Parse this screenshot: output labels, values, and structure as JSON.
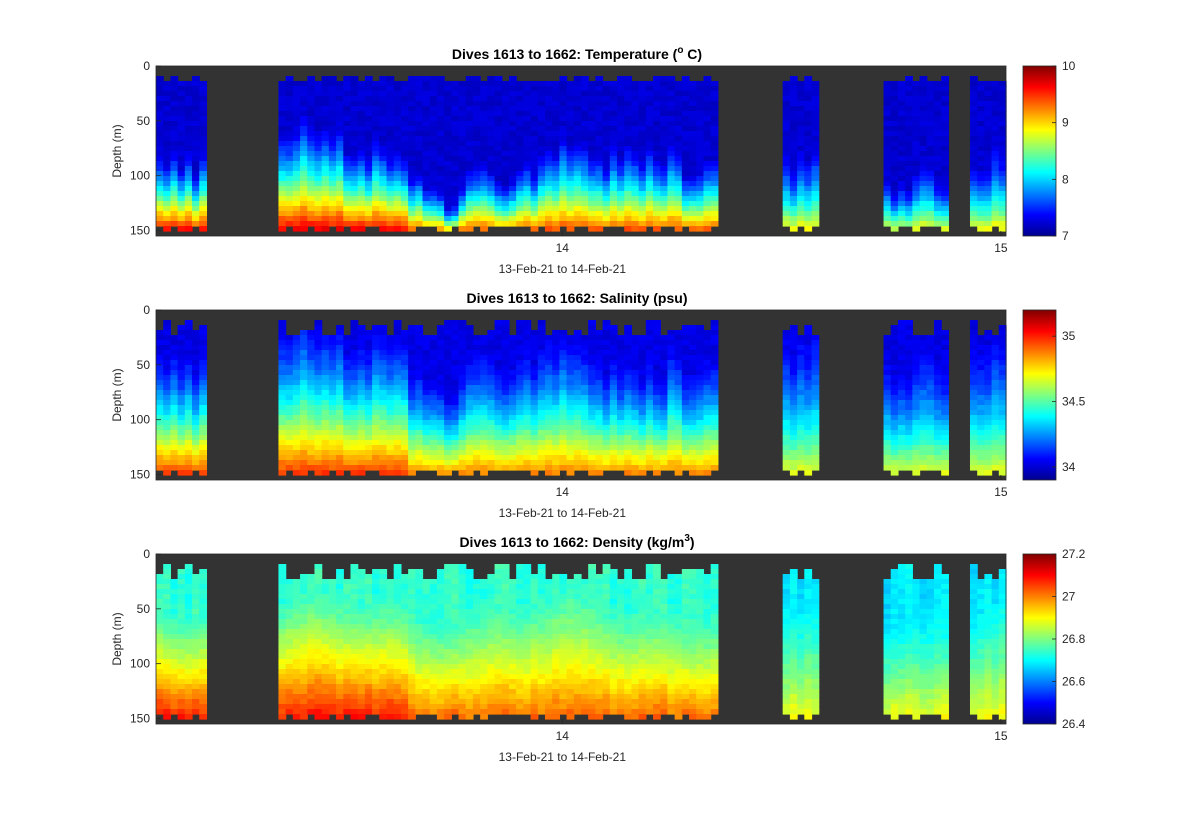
{
  "colors": {
    "nodata": "#333333",
    "colormap": "jet"
  },
  "chart_data": [
    {
      "type": "heatmap",
      "title_pre": "Dives 1613 to 1662: Temperature (",
      "title_sup": "o",
      "title_post": " C)",
      "variable": "temperature",
      "ylabel": "Depth (m)",
      "xlabel": "13-Feb-21 to 14-Feb-21",
      "x_ticks": [
        "14",
        "15"
      ],
      "y_ticks": [
        "0",
        "50",
        "100",
        "150"
      ],
      "ylim": [
        0,
        155
      ],
      "y_reversed": true,
      "colorbar": {
        "ticks": [
          "7",
          "8",
          "9",
          "10"
        ],
        "range": [
          7,
          10
        ]
      }
    },
    {
      "type": "heatmap",
      "title_pre": "Dives 1613 to 1662: Salinity (psu)",
      "title_sup": "",
      "title_post": "",
      "variable": "salinity",
      "ylabel": "Depth (m)",
      "xlabel": "13-Feb-21 to 14-Feb-21",
      "x_ticks": [
        "14",
        "15"
      ],
      "y_ticks": [
        "0",
        "50",
        "100",
        "150"
      ],
      "ylim": [
        0,
        155
      ],
      "y_reversed": true,
      "colorbar": {
        "ticks": [
          "34",
          "34.5",
          "35"
        ],
        "range": [
          33.9,
          35.2
        ]
      }
    },
    {
      "type": "heatmap",
      "title_pre": "Dives 1613 to 1662: Density (kg/m",
      "title_sup": "3",
      "title_post": ")",
      "variable": "density",
      "ylabel": "Depth (m)",
      "xlabel": "13-Feb-21 to 14-Feb-21",
      "x_ticks": [
        "14",
        "15"
      ],
      "y_ticks": [
        "0",
        "50",
        "100",
        "150"
      ],
      "ylim": [
        0,
        155
      ],
      "y_reversed": true,
      "colorbar": {
        "ticks": [
          "26.4",
          "26.6",
          "26.8",
          "27",
          "27.2"
        ],
        "range": [
          26.4,
          27.2
        ]
      }
    }
  ]
}
